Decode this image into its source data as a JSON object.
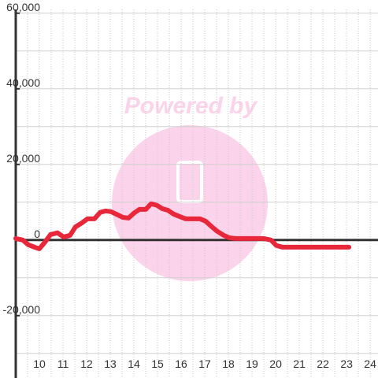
{
  "chart_data": {
    "type": "line",
    "watermark": "Powered by",
    "xlim": [
      9,
      24.33
    ],
    "ylim": [
      -36500,
      61000
    ],
    "xticks": [
      10,
      11,
      12,
      13,
      14,
      15,
      16,
      17,
      18,
      19,
      20,
      21,
      22,
      23,
      24
    ],
    "yticks": [
      {
        "value": -20000,
        "label": "-20,000"
      },
      0,
      {
        "value": 20000,
        "label": "20,000"
      },
      {
        "value": 40000,
        "label": "40,000"
      },
      {
        "value": 60000,
        "label": "60,000"
      }
    ],
    "ygrid": [
      -30000,
      -20000,
      -10000,
      0,
      10000,
      20000,
      30000,
      40000,
      50000,
      60000
    ],
    "xgrid": [
      9.5,
      10,
      10.5,
      11,
      11.5,
      12,
      12.5,
      13,
      13.5,
      14,
      14.5,
      15,
      15.5,
      16,
      16.5,
      17,
      17.5,
      18,
      18.5,
      19,
      19.5,
      20,
      20.5,
      21,
      21.5,
      22,
      22.5,
      23,
      23.5,
      24
    ],
    "grid": true,
    "series": [
      {
        "color": "#e8273a",
        "x": [
          9.0,
          9.3,
          9.53,
          9.8,
          10.0,
          10.23,
          10.47,
          10.77,
          11.03,
          11.3,
          11.53,
          11.77,
          12.03,
          12.33,
          12.57,
          12.8,
          13.03,
          13.3,
          13.53,
          13.77,
          14.0,
          14.23,
          14.5,
          14.73,
          14.97,
          15.2,
          15.43,
          15.67,
          15.9,
          16.2,
          16.5,
          16.8,
          17.03,
          17.3,
          17.53,
          17.8,
          18.03,
          18.3,
          19.5,
          19.8,
          20.03,
          20.3,
          23.1
        ],
        "values": [
          400,
          0,
          -1250,
          -1900,
          -2300,
          -600,
          1450,
          1900,
          800,
          1250,
          3500,
          4400,
          5600,
          5600,
          7300,
          7700,
          7500,
          6700,
          6000,
          5800,
          7100,
          8100,
          8100,
          9600,
          9200,
          8300,
          7900,
          6900,
          6300,
          5600,
          5600,
          5600,
          5000,
          3500,
          2300,
          1250,
          600,
          400,
          400,
          0,
          -1450,
          -1900,
          -1900
        ]
      }
    ]
  }
}
